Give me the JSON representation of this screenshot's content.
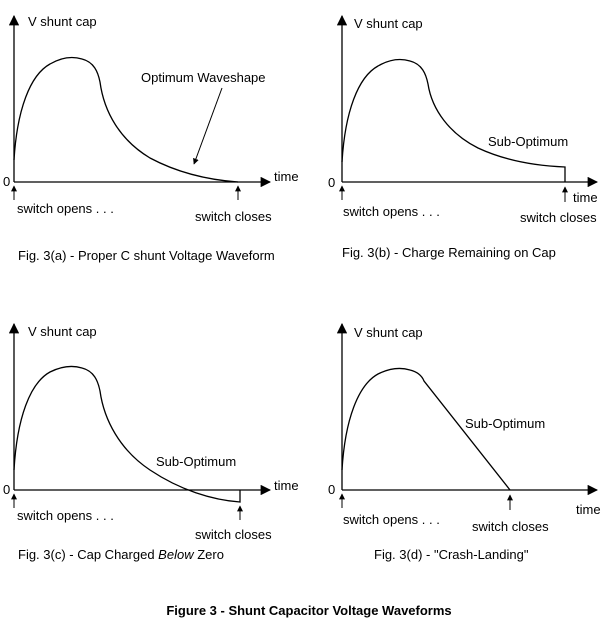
{
  "panels": [
    {
      "id": "a",
      "y_label": "V shunt cap",
      "x_label": "time",
      "zero_label": "0",
      "start_label": "switch opens . . .",
      "end_label": "switch closes",
      "annotation": "Optimum Waveshape",
      "caption": "Fig. 3(a) - Proper C shunt Voltage Waveform"
    },
    {
      "id": "b",
      "y_label": "V shunt cap",
      "x_label": "time",
      "zero_label": "0",
      "start_label": "switch opens . . .",
      "end_label": "switch closes",
      "annotation": "Sub-Optimum",
      "caption": "Fig. 3(b) - Charge Remaining on Cap"
    },
    {
      "id": "c",
      "y_label": "V shunt cap",
      "x_label": "time",
      "zero_label": "0",
      "start_label": "switch opens . . .",
      "end_label": "switch closes",
      "annotation": "Sub-Optimum",
      "caption_prefix": "Fig. 3(c) - Cap Charged ",
      "caption_italic": "Below",
      "caption_suffix": " Zero"
    },
    {
      "id": "d",
      "y_label": "V shunt cap",
      "x_label": "time",
      "zero_label": "0",
      "start_label": "switch opens . . .",
      "end_label": "switch closes",
      "annotation": "Sub-Optimum",
      "caption": "Fig. 3(d) - \"Crash-Landing\""
    }
  ],
  "figure_title": "Figure 3 - Shunt Capacitor Voltage Waveforms"
}
